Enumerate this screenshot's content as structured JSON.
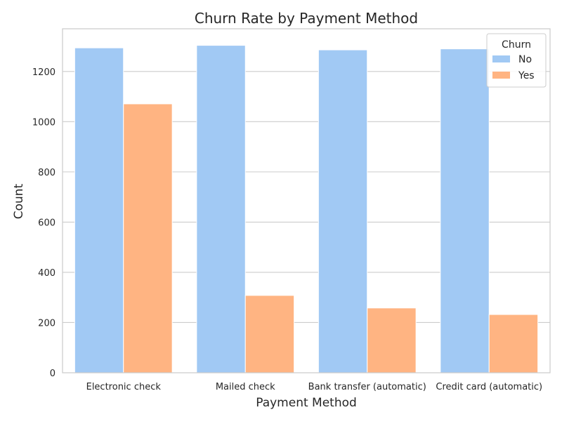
{
  "chart_data": {
    "type": "bar",
    "title": "Churn Rate by Payment Method",
    "xlabel": "Payment Method",
    "ylabel": "Count",
    "categories": [
      "Electronic check",
      "Mailed check",
      "Bank transfer (automatic)",
      "Credit card (automatic)"
    ],
    "series": [
      {
        "name": "No",
        "color": "#a1c9f4",
        "values": [
          1294,
          1304,
          1286,
          1290
        ]
      },
      {
        "name": "Yes",
        "color": "#ffb482",
        "values": [
          1071,
          308,
          258,
          232
        ]
      }
    ],
    "ylim": [
      0,
      1370
    ],
    "yticks": [
      0,
      200,
      400,
      600,
      800,
      1000,
      1200
    ],
    "grid": true,
    "legend": {
      "title": "Churn",
      "placement": "top-right"
    }
  }
}
